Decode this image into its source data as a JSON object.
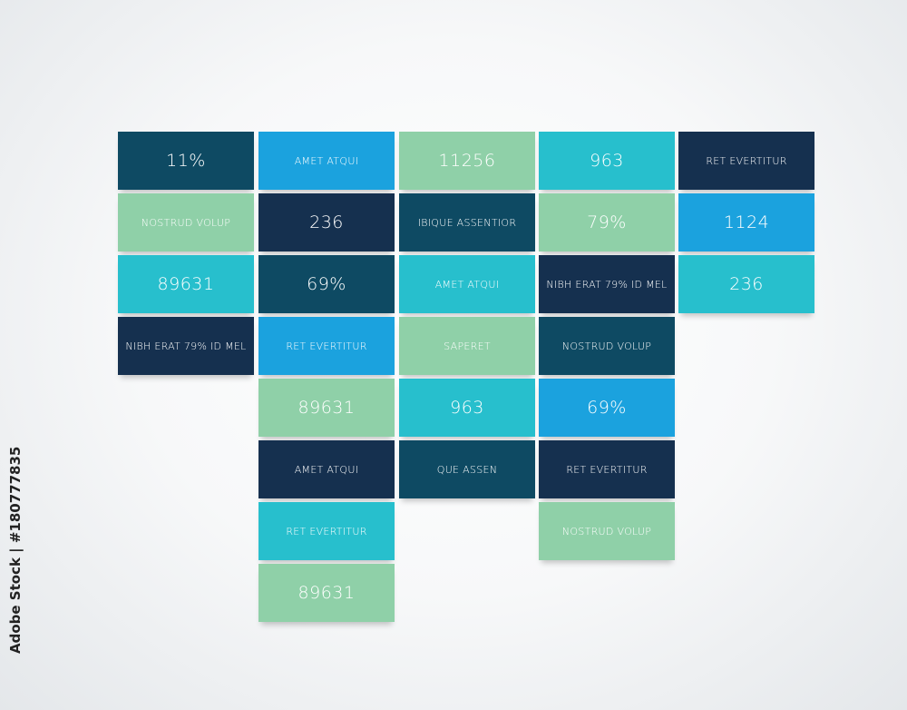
{
  "watermark": "Adobe Stock | #180777835",
  "columns": [
    {
      "tiles": [
        {
          "text": "11%",
          "color": "#0e4a63"
        },
        {
          "text": "NOSTRUD VOLUP",
          "color": "#8fd0a8"
        },
        {
          "text": "89631",
          "color": "#27bfcd"
        },
        {
          "text": "NIBH ERAT 79% ID MEL",
          "color": "#15304f"
        }
      ]
    },
    {
      "tiles": [
        {
          "text": "AMET ATQUI",
          "color": "#1ba2de"
        },
        {
          "text": "236",
          "color": "#15304f"
        },
        {
          "text": "69%",
          "color": "#0e4a63"
        },
        {
          "text": "RET EVERTITUR",
          "color": "#1ba2de"
        },
        {
          "text": "89631",
          "color": "#8fd0a8"
        },
        {
          "text": "AMET ATQUI",
          "color": "#15304f"
        },
        {
          "text": "RET EVERTITUR",
          "color": "#27bfcd"
        },
        {
          "text": "89631",
          "color": "#8fd0a8"
        }
      ]
    },
    {
      "tiles": [
        {
          "text": "11256",
          "color": "#8fd0a8"
        },
        {
          "text": "IBIQUE ASSENTIOR",
          "color": "#0e4a63"
        },
        {
          "text": "AMET ATQUI",
          "color": "#27bfcd"
        },
        {
          "text": "SAPERET",
          "color": "#8fd0a8"
        },
        {
          "text": "963",
          "color": "#27bfcd"
        },
        {
          "text": "QUE ASSEN",
          "color": "#0e4a63"
        }
      ]
    },
    {
      "tiles": [
        {
          "text": "963",
          "color": "#27bfcd"
        },
        {
          "text": "79%",
          "color": "#8fd0a8"
        },
        {
          "text": "NIBH ERAT 79% ID MEL",
          "color": "#15304f"
        },
        {
          "text": "NOSTRUD VOLUP",
          "color": "#0e4a63"
        },
        {
          "text": "69%",
          "color": "#1ba2de"
        },
        {
          "text": "RET EVERTITUR",
          "color": "#15304f"
        },
        {
          "text": "NOSTRUD VOLUP",
          "color": "#8fd0a8"
        }
      ]
    },
    {
      "tiles": [
        {
          "text": "RET EVERTITUR",
          "color": "#15304f"
        },
        {
          "text": "1124",
          "color": "#1ba2de"
        },
        {
          "text": "236",
          "color": "#27bfcd"
        }
      ]
    }
  ]
}
